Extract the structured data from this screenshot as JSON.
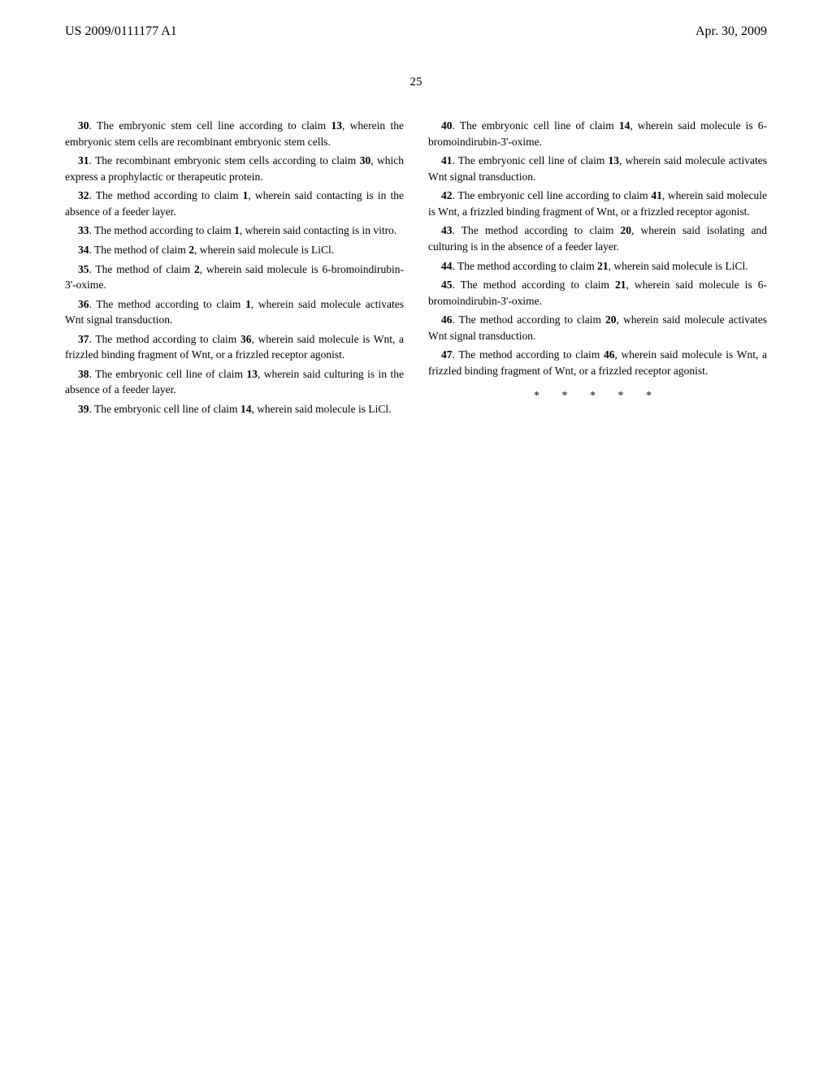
{
  "header": {
    "docNumber": "US 2009/0111177 A1",
    "date": "Apr. 30, 2009"
  },
  "pageNumber": "25",
  "leftColumn": {
    "claim30": {
      "num": "30",
      "text": ". The embryonic stem cell line according to claim ",
      "ref": "13",
      "text2": ", wherein the embryonic stem cells are recombinant embryonic stem cells."
    },
    "claim31": {
      "num": "31",
      "text": ". The recombinant embryonic stem cells according to claim ",
      "ref": "30",
      "text2": ", which express a prophylactic or therapeutic protein."
    },
    "claim32": {
      "num": "32",
      "text": ". The method according to claim ",
      "ref": "1",
      "text2": ", wherein said contacting is in the absence of a feeder layer."
    },
    "claim33": {
      "num": "33",
      "text": ". The method according to claim ",
      "ref": "1",
      "text2": ", wherein said contacting is in vitro."
    },
    "claim34": {
      "num": "34",
      "text": ". The method of claim ",
      "ref": "2",
      "text2": ", wherein said molecule is LiCl."
    },
    "claim35": {
      "num": "35",
      "text": ". The method of claim ",
      "ref": "2",
      "text2": ", wherein said molecule is 6-bromoindirubin-3'-oxime."
    },
    "claim36": {
      "num": "36",
      "text": ". The method according to claim ",
      "ref": "1",
      "text2": ", wherein said molecule activates Wnt signal transduction."
    },
    "claim37": {
      "num": "37",
      "text": ". The method according to claim ",
      "ref": "36",
      "text2": ", wherein said molecule is Wnt, a frizzled binding fragment of Wnt, or a frizzled receptor agonist."
    },
    "claim38": {
      "num": "38",
      "text": ". The embryonic cell line of claim ",
      "ref": "13",
      "text2": ", wherein said culturing is in the absence of a feeder layer."
    },
    "claim39": {
      "num": "39",
      "text": ". The embryonic cell line of claim ",
      "ref": "14",
      "text2": ", wherein said molecule is LiCl."
    }
  },
  "rightColumn": {
    "claim40": {
      "num": "40",
      "text": ". The embryonic cell line of claim ",
      "ref": "14",
      "text2": ", wherein said molecule is 6-bromoindirubin-3'-oxime."
    },
    "claim41": {
      "num": "41",
      "text": ". The embryonic cell line of claim ",
      "ref": "13",
      "text2": ", wherein said molecule activates Wnt signal transduction."
    },
    "claim42": {
      "num": "42",
      "text": ". The embryonic cell line according to claim ",
      "ref": "41",
      "text2": ", wherein said molecule is Wnt, a frizzled binding fragment of Wnt, or a frizzled receptor agonist."
    },
    "claim43": {
      "num": "43",
      "text": ". The method according to claim ",
      "ref": "20",
      "text2": ", wherein said isolating and culturing is in the absence of a feeder layer."
    },
    "claim44": {
      "num": "44",
      "text": ". The method according to claim ",
      "ref": "21",
      "text2": ", wherein said molecule is LiCl."
    },
    "claim45": {
      "num": "45",
      "text": ". The method according to claim ",
      "ref": "21",
      "text2": ", wherein said molecule is 6-bromoindirubin-3'-oxime."
    },
    "claim46": {
      "num": "46",
      "text": ". The method according to claim ",
      "ref": "20",
      "text2": ", wherein said molecule activates Wnt signal transduction."
    },
    "claim47": {
      "num": "47",
      "text": ". The method according to claim ",
      "ref": "46",
      "text2": ", wherein said molecule is Wnt, a frizzled binding fragment of Wnt, or a frizzled receptor agonist."
    },
    "endMarks": "* * * * *"
  }
}
